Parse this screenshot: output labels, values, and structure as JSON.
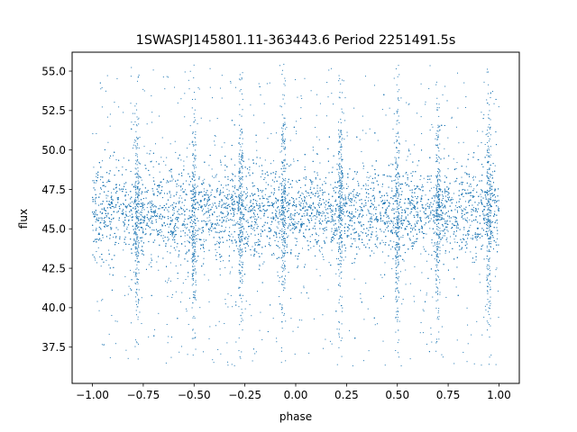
{
  "chart_data": {
    "type": "scatter",
    "title": "1SWASPJ145801.11-363443.6 Period 2251491.5s",
    "xlabel": "phase",
    "ylabel": "flux",
    "xlim": [
      -1.1,
      1.1
    ],
    "ylim": [
      35.2,
      56.2
    ],
    "x_ticks": [
      -1.0,
      -0.75,
      -0.5,
      -0.25,
      0.0,
      0.25,
      0.5,
      0.75,
      1.0
    ],
    "x_tick_labels": [
      "−1.00",
      "−0.75",
      "−0.50",
      "−0.25",
      "0.00",
      "0.25",
      "0.50",
      "0.75",
      "1.00"
    ],
    "y_ticks": [
      37.5,
      40.0,
      42.5,
      45.0,
      47.5,
      50.0,
      52.5,
      55.0
    ],
    "y_tick_labels": [
      "37.5",
      "40.0",
      "42.5",
      "45.0",
      "47.5",
      "50.0",
      "52.5",
      "55.0"
    ],
    "grid": false,
    "marker_color": "#1f77b4",
    "series": [
      {
        "phase_range": [
          -1.0,
          1.0
        ],
        "flux_core_range": [
          43.2,
          48.6
        ],
        "flux_center": 46.0,
        "flux_full_range": [
          36.3,
          55.5
        ],
        "spike_phases": [
          -0.78,
          -0.5,
          -0.27,
          -0.06,
          0.22,
          0.5,
          0.7,
          0.95
        ]
      }
    ]
  }
}
